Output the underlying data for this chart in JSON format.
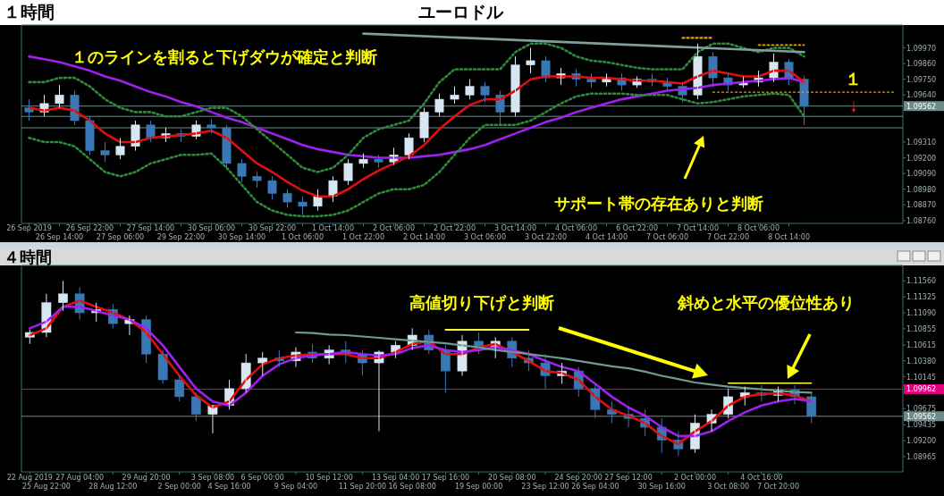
{
  "chart_data": [
    {
      "type": "candlestick",
      "title": "ユーロドル",
      "categories": [
        "26 Sep 2019",
        null,
        "26 Sep 14:00",
        null,
        "26 Sep 22:00",
        null,
        "27 Sep 06:00",
        null,
        "27 Sep 14:00",
        null,
        "29 Sep 22:00",
        null,
        "30 Sep 06:00",
        null,
        "30 Sep 14:00",
        null,
        "30 Sep 22:00",
        null,
        "1 Oct 06:00",
        null,
        "1 Oct 14:00",
        null,
        "1 Oct 22:00",
        null,
        "2 Oct 06:00",
        null,
        "2 Oct 14:00",
        null,
        "2 Oct 22:00",
        null,
        "3 Oct 06:00",
        null,
        "3 Oct 14:00",
        null,
        "3 Oct 22:00",
        null,
        "4 Oct 06:00",
        null,
        "4 Oct 14:00",
        null,
        "6 Oct 22:00",
        null,
        "7 Oct 06:00",
        null,
        "7 Oct 14:00",
        null,
        "7 Oct 22:00",
        null,
        "8 Oct 06:00",
        null,
        "8 Oct 14:00",
        null,
        null,
        null,
        null,
        null,
        null,
        null
      ],
      "ohlc": [
        [
          1.0955,
          1.0961,
          1.0946,
          1.0952
        ],
        [
          1.0952,
          1.0964,
          1.0949,
          1.0958
        ],
        [
          1.0958,
          1.0971,
          1.0955,
          1.0964
        ],
        [
          1.0964,
          1.0967,
          1.0943,
          1.0946
        ],
        [
          1.0946,
          1.0949,
          1.0922,
          1.0925
        ],
        [
          1.0925,
          1.0931,
          1.0917,
          1.0922
        ],
        [
          1.0922,
          1.0934,
          1.0919,
          1.0928
        ],
        [
          1.0928,
          1.0946,
          1.0925,
          1.0943
        ],
        [
          1.0943,
          1.0946,
          1.0931,
          1.0934
        ],
        [
          1.0934,
          1.0941,
          1.0931,
          1.0937
        ],
        [
          1.0937,
          1.094,
          1.0931,
          1.0935
        ],
        [
          1.0935,
          1.0946,
          1.0933,
          1.0943
        ],
        [
          1.0943,
          1.0947,
          1.0937,
          1.0941
        ],
        [
          1.0941,
          1.0943,
          1.0913,
          1.0916
        ],
        [
          1.0916,
          1.0919,
          1.0903,
          1.0907
        ],
        [
          1.0907,
          1.091,
          1.0899,
          1.0904
        ],
        [
          1.0904,
          1.0907,
          1.0891,
          1.0895
        ],
        [
          1.0895,
          1.0898,
          1.0885,
          1.0889
        ],
        [
          1.0889,
          1.0893,
          1.088,
          1.0886
        ],
        [
          1.0886,
          1.0898,
          1.0883,
          1.0893
        ],
        [
          1.0893,
          1.0907,
          1.0889,
          1.0904
        ],
        [
          1.0904,
          1.0919,
          1.0901,
          1.0916
        ],
        [
          1.0916,
          1.0923,
          1.0913,
          1.0919
        ],
        [
          1.0919,
          1.0922,
          1.0913,
          1.0917
        ],
        [
          1.0917,
          1.0927,
          1.0915,
          1.0922
        ],
        [
          1.0922,
          1.0937,
          1.0919,
          1.0934
        ],
        [
          1.0934,
          1.0955,
          1.0931,
          1.0952
        ],
        [
          1.0952,
          1.0965,
          1.0949,
          1.0961
        ],
        [
          1.0961,
          1.097,
          1.0958,
          1.0964
        ],
        [
          1.0964,
          1.0975,
          1.0961,
          1.097
        ],
        [
          1.097,
          1.0973,
          1.0959,
          1.0964
        ],
        [
          1.0964,
          1.0967,
          1.0943,
          1.0952
        ],
        [
          1.0952,
          1.0991,
          1.0949,
          1.0985
        ],
        [
          1.0985,
          1.0997,
          1.0979,
          1.0988
        ],
        [
          1.0988,
          1.0991,
          1.0973,
          1.0976
        ],
        [
          1.0976,
          1.0983,
          1.0971,
          1.0979
        ],
        [
          1.0979,
          1.0982,
          1.097,
          1.0975
        ],
        [
          1.0975,
          1.0979,
          1.0969,
          1.0973
        ],
        [
          1.0973,
          1.0979,
          1.097,
          1.0976
        ],
        [
          1.0976,
          1.0979,
          1.0967,
          1.0971
        ],
        [
          1.0971,
          1.0977,
          1.0969,
          1.0975
        ],
        [
          1.0975,
          1.0979,
          1.097,
          1.0973
        ],
        [
          1.0973,
          1.0976,
          1.0967,
          1.097
        ],
        [
          1.097,
          1.0973,
          1.0959,
          1.0964
        ],
        [
          1.0964,
          1.1,
          1.0961,
          1.0991
        ],
        [
          1.0991,
          1.0994,
          1.097,
          1.0976
        ],
        [
          1.0976,
          1.0979,
          1.0967,
          1.0971
        ],
        [
          1.0971,
          1.0977,
          1.0969,
          1.0973
        ],
        [
          1.0973,
          1.0981,
          1.097,
          1.0976
        ],
        [
          1.0976,
          1.0993,
          1.0973,
          1.0987
        ],
        [
          1.0987,
          1.0989,
          1.0971,
          1.0975
        ],
        [
          1.0975,
          1.0977,
          1.0943,
          1.0956
        ],
        null,
        null,
        null,
        null,
        null,
        null
      ],
      "series": [
        {
          "type": "line",
          "color": "#a020f0",
          "values": [
            1.0991,
            1.0989,
            1.0987,
            1.0984,
            1.0981,
            1.0977,
            1.0974,
            1.097,
            1.0966,
            1.0963,
            1.0959,
            1.0956,
            1.0952,
            1.0948,
            1.0945,
            1.0941,
            1.0937,
            1.0933,
            1.0929,
            1.0926,
            1.0924,
            1.0922,
            1.0921,
            1.092,
            1.092,
            1.092,
            1.0921,
            1.0922,
            1.0924,
            1.0926,
            1.0929,
            1.0933,
            1.0937,
            1.0941,
            1.0945,
            1.0948,
            1.0952,
            1.0955,
            1.0958,
            1.0961,
            1.0963,
            1.0965,
            1.0967,
            1.0968,
            1.0969,
            1.0971,
            1.0972,
            1.0973,
            1.0974,
            1.0975,
            1.0976,
            1.0973,
            null,
            null,
            null,
            null,
            null,
            null
          ]
        },
        {
          "type": "line",
          "color": "#e01010",
          "values": [
            1.0955,
            1.0953,
            1.0955,
            1.0953,
            1.0946,
            1.0937,
            1.0931,
            1.0931,
            1.0934,
            1.0935,
            1.0936,
            1.0937,
            1.0939,
            1.0934,
            1.0925,
            1.0916,
            1.091,
            1.0903,
            1.0897,
            1.0893,
            1.0893,
            1.0898,
            1.0905,
            1.0911,
            1.0916,
            1.0921,
            1.0929,
            1.094,
            1.0949,
            1.0957,
            1.0961,
            1.0961,
            1.0967,
            1.0975,
            1.0977,
            1.0977,
            1.0977,
            1.0976,
            1.0976,
            1.0975,
            1.0974,
            1.0974,
            1.0973,
            1.0972,
            1.0977,
            1.0981,
            1.0979,
            1.0977,
            1.0977,
            1.0981,
            1.0981,
            1.0973,
            null,
            null,
            null,
            null,
            null,
            null
          ]
        },
        {
          "type": "line",
          "color": "#2e8b3a",
          "line_style": "dotted",
          "values": [
            1.0973,
            1.0973,
            1.0976,
            1.0976,
            1.097,
            1.0961,
            1.0955,
            1.0952,
            1.0952,
            1.0949,
            1.0949,
            1.0952,
            1.0955,
            1.0955,
            1.0949,
            1.094,
            1.0931,
            1.0922,
            1.0913,
            1.091,
            1.0913,
            1.0922,
            1.0934,
            1.094,
            1.0943,
            1.0946,
            1.0958,
            1.0973,
            1.0982,
            1.0982,
            1.0982,
            1.0982,
            1.0994,
            1.1,
            1.1,
            1.0997,
            1.0991,
            1.0988,
            1.0987,
            1.0985,
            1.0983,
            1.0982,
            1.0982,
            1.0982,
            1.0994,
            1.1,
            1.1,
            1.0997,
            1.0994,
            1.0997,
            1.0997,
            1.0991,
            null,
            null,
            null,
            null,
            null,
            null
          ]
        },
        {
          "type": "line",
          "color": "#2e8b3a",
          "line_style": "dotted",
          "values": [
            1.0934,
            1.0931,
            1.0931,
            1.0928,
            1.0919,
            1.091,
            1.0907,
            1.091,
            1.0916,
            1.0919,
            1.0922,
            1.0922,
            1.0923,
            1.0913,
            1.0901,
            1.0889,
            1.0883,
            1.088,
            1.0879,
            1.0879,
            1.088,
            1.0883,
            1.0889,
            1.0895,
            1.0898,
            1.0898,
            1.0901,
            1.091,
            1.0922,
            1.0934,
            1.0943,
            1.0943,
            1.0943,
            1.0946,
            1.0952,
            1.0958,
            1.0963,
            1.0965,
            1.0965,
            1.0965,
            1.0964,
            1.0964,
            1.0964,
            1.0961,
            1.0958,
            1.0959,
            1.0961,
            1.0963,
            1.0964,
            1.0965,
            1.0964,
            1.0949,
            null,
            null,
            null,
            null,
            null,
            null
          ]
        },
        {
          "type": "line",
          "color": "#7fa0a0",
          "values": [
            null,
            null,
            null,
            null,
            null,
            null,
            null,
            null,
            null,
            null,
            null,
            null,
            null,
            null,
            null,
            null,
            null,
            null,
            null,
            null,
            null,
            null,
            1.1007,
            null,
            null,
            null,
            null,
            null,
            null,
            null,
            null,
            null,
            null,
            null,
            null,
            null,
            null,
            null,
            null,
            null,
            null,
            null,
            null,
            null,
            null,
            null,
            null,
            null,
            null,
            null,
            null,
            1.0994,
            null,
            null,
            null,
            null,
            null,
            null
          ]
        },
        {
          "type": "line",
          "color": "#e8a000",
          "line_style": "dotted",
          "values": [
            null,
            null,
            null,
            null,
            null,
            null,
            null,
            null,
            null,
            null,
            null,
            null,
            null,
            null,
            null,
            null,
            null,
            null,
            null,
            null,
            null,
            null,
            null,
            null,
            null,
            null,
            null,
            null,
            null,
            null,
            null,
            null,
            null,
            null,
            null,
            null,
            null,
            null,
            null,
            null,
            null,
            null,
            null,
            1.1004,
            null,
            1.1004,
            null,
            null,
            null,
            null,
            null,
            null,
            null,
            null,
            null,
            null,
            null,
            null
          ]
        },
        {
          "type": "line",
          "color": "#e8a000",
          "line_style": "dotted",
          "values": [
            null,
            null,
            null,
            null,
            null,
            null,
            null,
            null,
            null,
            null,
            null,
            null,
            null,
            null,
            null,
            null,
            null,
            null,
            null,
            null,
            null,
            null,
            null,
            null,
            null,
            null,
            null,
            null,
            null,
            null,
            null,
            null,
            null,
            null,
            null,
            null,
            null,
            null,
            null,
            null,
            null,
            null,
            null,
            null,
            null,
            null,
            null,
            null,
            1.0999,
            null,
            null,
            1.0999,
            null,
            null,
            null,
            null,
            null,
            null
          ]
        },
        {
          "type": "line",
          "color": "#e8a000",
          "line_style": "dotted",
          "values": [
            null,
            null,
            null,
            null,
            null,
            null,
            null,
            null,
            null,
            null,
            null,
            null,
            null,
            null,
            null,
            null,
            null,
            null,
            null,
            null,
            null,
            null,
            null,
            null,
            null,
            null,
            null,
            null,
            null,
            null,
            null,
            null,
            null,
            null,
            null,
            null,
            null,
            null,
            null,
            null,
            null,
            null,
            null,
            null,
            null,
            1.0966,
            null,
            null,
            null,
            null,
            null,
            null,
            null,
            null,
            null,
            null,
            null,
            1.0966
          ]
        }
      ],
      "ylim": [
        1.0874,
        1.1013
      ],
      "yticks": [
        {
          "value": 1.0876,
          "label": "1.08760"
        },
        {
          "value": 1.0887,
          "label": "1.08870"
        },
        {
          "value": 1.0898,
          "label": "1.08980"
        },
        {
          "value": 1.0909,
          "label": "1.09090"
        },
        {
          "value": 1.092,
          "label": "1.09200"
        },
        {
          "value": 1.0931,
          "label": "1.09310"
        },
        {
          "value": 1.0964,
          "label": "1.09640"
        },
        {
          "value": 1.0975,
          "label": "1.09750"
        },
        {
          "value": 1.0986,
          "label": "1.09860"
        },
        {
          "value": 1.0997,
          "label": "1.09970"
        }
      ],
      "ref_lines": [
        {
          "axis": "y",
          "value": 1.09562,
          "label": "1.09562",
          "color": "#6e8c8c"
        },
        {
          "axis": "y",
          "value": 1.0949,
          "color": "#6e8c8c"
        },
        {
          "axis": "y",
          "value": 1.0941,
          "color": "#6e8c8c"
        }
      ],
      "annotations": [
        "１時間",
        "１のラインを割ると下げダウが確定と判断",
        {
          "text": "１",
          "y": 1.0966
        },
        "サポート帯の存在ありと判断"
      ]
    },
    {
      "type": "candlestick",
      "categories": [
        "22 Aug 2019",
        "25 Aug 22:00",
        null,
        "27 Aug 04:00",
        null,
        "28 Aug 12:00",
        null,
        "29 Aug 20:00",
        null,
        "2 Sep 00:00",
        null,
        "3 Sep 08:00",
        "4 Sep 16:00",
        null,
        "6 Sep 00:00",
        null,
        "9 Sep 04:00",
        null,
        "10 Sep 12:00",
        null,
        "11 Sep 20:00",
        null,
        "13 Sep 04:00",
        "16 Sep 08:00",
        null,
        "17 Sep 16:00",
        null,
        "19 Sep 00:00",
        null,
        "20 Sep 08:00",
        null,
        "23 Sep 12:00",
        null,
        "24 Sep 20:00",
        "26 Sep 04:00",
        null,
        "27 Sep 12:00",
        null,
        "30 Sep 16:00",
        null,
        "2 Oct 00:00",
        null,
        "3 Oct 08:00",
        null,
        "4 Oct 16:00",
        "7 Oct 20:00",
        null,
        null,
        null,
        null,
        null,
        null,
        null
      ],
      "ohlc": [
        [
          1.1073,
          1.1084,
          1.1063,
          1.108
        ],
        [
          1.108,
          1.1137,
          1.1073,
          1.1124
        ],
        [
          1.1124,
          1.1156,
          1.1112,
          1.1137
        ],
        [
          1.1137,
          1.1147,
          1.1099,
          1.1109
        ],
        [
          1.1109,
          1.1124,
          1.1096,
          1.1114
        ],
        [
          1.1114,
          1.1122,
          1.1086,
          1.1093
        ],
        [
          1.1093,
          1.1105,
          1.1076,
          1.1099
        ],
        [
          1.1099,
          1.1105,
          1.1035,
          1.1048
        ],
        [
          1.1048,
          1.1054,
          1.1004,
          1.101
        ],
        [
          1.101,
          1.1016,
          1.0978,
          1.0985
        ],
        [
          1.0985,
          1.0991,
          1.0949,
          1.0959
        ],
        [
          1.0959,
          1.0972,
          1.0931,
          1.0972
        ],
        [
          1.0972,
          1.101,
          1.0966,
          1.0997
        ],
        [
          1.0997,
          1.1048,
          1.0991,
          1.1035
        ],
        [
          1.1035,
          1.1051,
          1.1016,
          1.1042
        ],
        [
          1.1042,
          1.1054,
          1.1029,
          1.1038
        ],
        [
          1.1038,
          1.1058,
          1.1029,
          1.1051
        ],
        [
          1.1051,
          1.1063,
          1.1035,
          1.1042
        ],
        [
          1.1042,
          1.1061,
          1.1033,
          1.1054
        ],
        [
          1.1054,
          1.1067,
          1.1035,
          1.1048
        ],
        [
          1.1048,
          1.1054,
          1.1016,
          1.1035
        ],
        [
          1.1035,
          1.1054,
          1.0934,
          1.1051
        ],
        [
          1.1051,
          1.1067,
          1.1042,
          1.1061
        ],
        [
          1.1061,
          1.1086,
          1.1054,
          1.1076
        ],
        [
          1.1076,
          1.1084,
          1.1048,
          1.1054
        ],
        [
          1.1054,
          1.1061,
          1.0991,
          1.1023
        ],
        [
          1.1023,
          1.1076,
          1.1016,
          1.1067
        ],
        [
          1.1067,
          1.108,
          1.1048,
          1.1058
        ],
        [
          1.1058,
          1.1073,
          1.1042,
          1.1067
        ],
        [
          1.1067,
          1.1073,
          1.1029,
          1.1042
        ],
        [
          1.1042,
          1.1054,
          1.1023,
          1.1035
        ],
        [
          1.1035,
          1.1048,
          1.0997,
          1.1016
        ],
        [
          1.1016,
          1.1035,
          1.1004,
          1.1023
        ],
        [
          1.1023,
          1.1029,
          1.0985,
          1.0997
        ],
        [
          1.0997,
          1.1004,
          1.0953,
          1.0966
        ],
        [
          1.0966,
          1.0978,
          1.0946,
          1.0959
        ],
        [
          1.0959,
          1.0972,
          1.094,
          1.0953
        ],
        [
          1.0953,
          1.0966,
          1.0927,
          1.094
        ],
        [
          1.094,
          1.0953,
          1.0902,
          1.0921
        ],
        [
          1.0921,
          1.0934,
          1.0898,
          1.0908
        ],
        [
          1.0908,
          1.0959,
          1.0902,
          1.0946
        ],
        [
          1.0946,
          1.0966,
          1.0934,
          1.0959
        ],
        [
          1.0959,
          1.0997,
          1.0953,
          1.0985
        ],
        [
          1.0985,
          1.1,
          1.0972,
          1.0991
        ],
        [
          1.0991,
          1.1002,
          1.0978,
          1.0987
        ],
        [
          1.0987,
          1.1,
          1.0978,
          1.0995
        ],
        [
          1.0995,
          1.1002,
          1.0974,
          1.0985
        ],
        [
          1.0985,
          1.0991,
          1.0946,
          1.0956
        ],
        null,
        null,
        null,
        null,
        null
      ],
      "series": [
        {
          "type": "line",
          "color": "#e01010",
          "values": [
            1.1076,
            1.1086,
            1.1118,
            1.1127,
            1.1118,
            1.1109,
            1.1099,
            1.108,
            1.1048,
            1.1016,
            1.0987,
            1.0969,
            1.0978,
            1.101,
            1.1033,
            1.1042,
            1.1046,
            1.1048,
            1.1048,
            1.1048,
            1.1042,
            1.1042,
            1.1051,
            1.1063,
            1.1067,
            1.1048,
            1.1048,
            1.1058,
            1.1063,
            1.1051,
            1.1038,
            1.1023,
            1.102,
            1.101,
            1.0985,
            1.0966,
            1.0957,
            1.0946,
            1.0927,
            1.0915,
            1.0934,
            1.0949,
            1.0972,
            1.0985,
            1.0989,
            1.099,
            1.0987,
            1.0978,
            null,
            null,
            null,
            null,
            null
          ]
        },
        {
          "type": "line",
          "color": "#a020f0",
          "values": [
            1.1086,
            1.1096,
            1.1118,
            1.1118,
            1.1112,
            1.1105,
            1.1099,
            1.1086,
            1.1061,
            1.1029,
            1.0997,
            1.0978,
            1.0972,
            1.0991,
            1.1016,
            1.1033,
            1.1042,
            1.1046,
            1.1048,
            1.1051,
            1.1048,
            1.1046,
            1.1048,
            1.1057,
            1.1061,
            1.1054,
            1.1051,
            1.1054,
            1.1058,
            1.1054,
            1.1048,
            1.1038,
            1.1029,
            1.1023,
            1.1004,
            1.0985,
            1.0969,
            1.0957,
            1.094,
            1.0927,
            1.0927,
            1.0934,
            1.0949,
            1.0962,
            1.0972,
            1.0978,
            1.0982,
            1.0978,
            null,
            null,
            null,
            null,
            null
          ]
        },
        {
          "type": "line",
          "color": "#6e9c8c",
          "values": [
            null,
            null,
            null,
            null,
            null,
            null,
            null,
            null,
            null,
            null,
            null,
            null,
            null,
            null,
            null,
            null,
            1.108,
            1.1079,
            1.1077,
            1.1076,
            1.1074,
            1.1072,
            1.107,
            1.1068,
            1.1066,
            1.1064,
            1.1061,
            1.1058,
            1.1054,
            1.1051,
            1.1048,
            1.1045,
            1.1042,
            1.1038,
            1.1034,
            1.103,
            1.1027,
            1.1022,
            1.1016,
            1.1011,
            1.1006,
            1.1003,
            1.1,
            1.0998,
            1.0996,
            1.0994,
            1.0992,
            1.0991,
            null,
            null,
            null,
            null,
            null
          ]
        },
        {
          "type": "line",
          "color": "#ffff40",
          "values": [
            null,
            null,
            null,
            null,
            null,
            null,
            null,
            null,
            null,
            null,
            null,
            null,
            null,
            null,
            null,
            null,
            null,
            null,
            null,
            null,
            null,
            null,
            null,
            null,
            null,
            1.1084,
            null,
            null,
            null,
            null,
            1.1084,
            null,
            null,
            null,
            null,
            null,
            null,
            null,
            null,
            null,
            null,
            null,
            null,
            null,
            null,
            null,
            null,
            null,
            null,
            null,
            null,
            null,
            null
          ]
        },
        {
          "type": "line",
          "color": "#ffff40",
          "values": [
            null,
            null,
            null,
            null,
            null,
            null,
            null,
            null,
            null,
            null,
            null,
            null,
            null,
            null,
            null,
            null,
            null,
            null,
            null,
            null,
            null,
            null,
            null,
            null,
            null,
            null,
            null,
            null,
            null,
            null,
            null,
            null,
            null,
            null,
            null,
            null,
            null,
            null,
            null,
            null,
            null,
            null,
            1.1005,
            null,
            null,
            null,
            null,
            1.1005,
            null,
            null,
            null,
            null,
            null
          ]
        }
      ],
      "ylim": [
        1.0874,
        1.1179
      ],
      "yticks": [
        {
          "value": 1.08965,
          "label": "1.08965"
        },
        {
          "value": 1.092,
          "label": "1.09200"
        },
        {
          "value": 1.09435,
          "label": "1.09435"
        },
        {
          "value": 1.09675,
          "label": "1.09675"
        },
        {
          "value": 1.10145,
          "label": "1.10145"
        },
        {
          "value": 1.1038,
          "label": "1.10380"
        },
        {
          "value": 1.10615,
          "label": "1.10615"
        },
        {
          "value": 1.10855,
          "label": "1.10855"
        },
        {
          "value": 1.1109,
          "label": "1.11090"
        },
        {
          "value": 1.11325,
          "label": "1.11325"
        },
        {
          "value": 1.1156,
          "label": "1.11560"
        }
      ],
      "ref_lines": [
        {
          "axis": "y",
          "value": 1.09962,
          "label": "1.09962",
          "color": "#e0007f"
        },
        {
          "axis": "y",
          "value": 1.09562,
          "label": "1.09562",
          "color": "#6e8c8c"
        }
      ],
      "annotations": [
        "４時間",
        "高値切り下げと判断",
        "斜めと水平の優位性あり"
      ]
    }
  ]
}
